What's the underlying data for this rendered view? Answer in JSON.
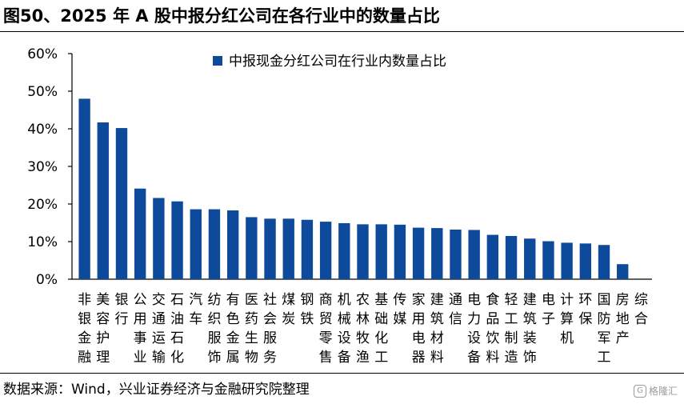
{
  "header": {
    "title": "图50、2025 年 A 股中报分红公司在各行业中的数量占比"
  },
  "footer": {
    "source": "数据来源：Wind，兴业证券经济与金融研究院整理",
    "watermark": "格隆汇"
  },
  "colors": {
    "bar": "#0e4a9b",
    "axis": "#000000"
  },
  "chart_data": {
    "type": "bar",
    "legend": "中报现金分红公司在行业内数量占比",
    "legend_position": "top-right",
    "ylim": [
      0,
      60
    ],
    "yticks": [
      "0%",
      "10%",
      "20%",
      "30%",
      "40%",
      "50%",
      "60%"
    ],
    "grid": false,
    "categories": [
      "非银金融",
      "美容护理",
      "银行",
      "公用事业",
      "交通运输",
      "石油石化",
      "汽车",
      "纺织服饰",
      "有色金属",
      "医药生物",
      "社会服务",
      "煤炭",
      "钢铁",
      "商贸零售",
      "机械设备",
      "农林牧渔",
      "基础化工",
      "传媒",
      "家用电器",
      "建筑材料",
      "通信",
      "电力设备",
      "食品饮料",
      "轻工制造",
      "建筑装饰",
      "电子",
      "计算机",
      "环保",
      "国防军工",
      "房地产",
      "综合"
    ],
    "values": [
      48.0,
      41.7,
      40.2,
      24.1,
      21.6,
      20.7,
      18.6,
      18.6,
      18.3,
      16.5,
      16.1,
      16.1,
      15.8,
      15.3,
      14.9,
      14.6,
      14.6,
      14.5,
      13.7,
      13.6,
      13.2,
      13.1,
      11.8,
      11.5,
      10.8,
      10.1,
      9.7,
      9.5,
      9.1,
      4.0,
      0
    ]
  }
}
